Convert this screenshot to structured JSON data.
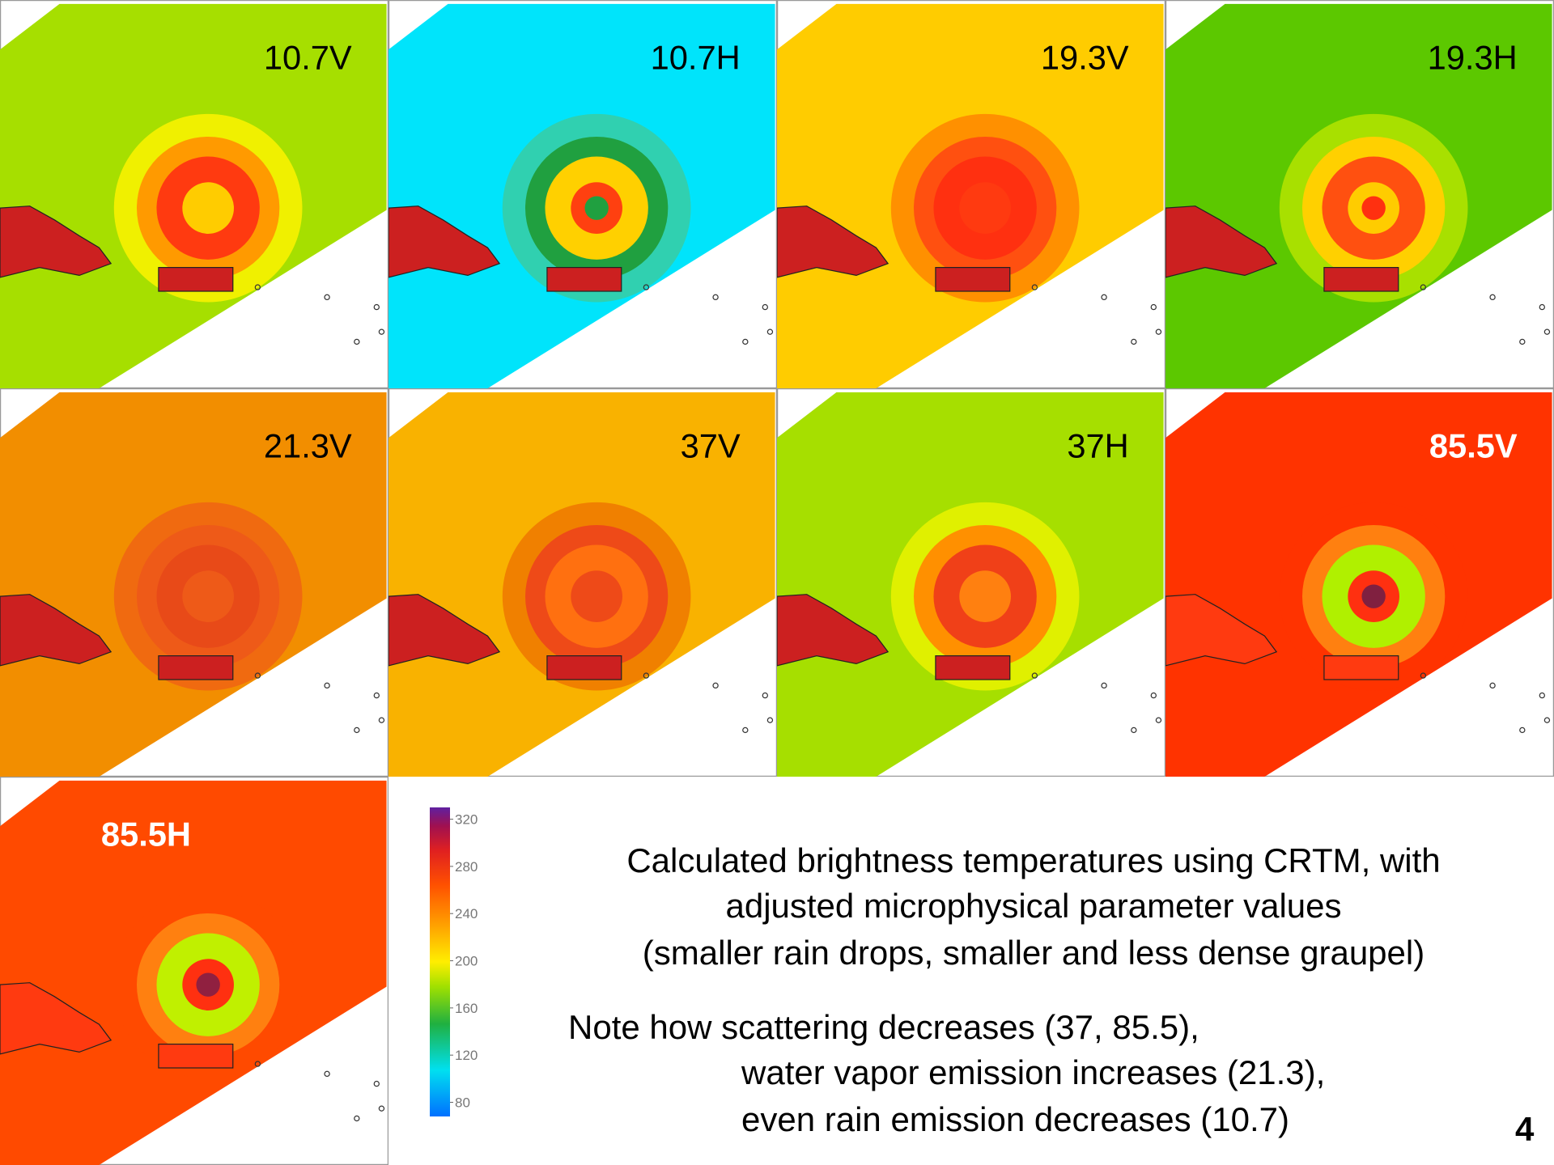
{
  "panels": [
    {
      "label": "10.7V",
      "color": "#a6df00",
      "label_color": "#000000"
    },
    {
      "label": "10.7H",
      "color": "#00e4fb",
      "label_color": "#000000"
    },
    {
      "label": "19.3V",
      "color": "#ffcc00",
      "label_color": "#000000"
    },
    {
      "label": "19.3H",
      "color": "#5cc800",
      "label_color": "#000000"
    },
    {
      "label": "21.3V",
      "color": "#f28e00",
      "label_color": "#000000"
    },
    {
      "label": "37V",
      "color": "#f9b200",
      "label_color": "#000000"
    },
    {
      "label": "37H",
      "color": "#a6df00",
      "label_color": "#000000"
    },
    {
      "label": "85.5V",
      "color": "#ff3300",
      "label_color": "#ffffff"
    },
    {
      "label": "85.5H",
      "color": "#ff4a00",
      "label_color": "#ffffff"
    }
  ],
  "colorbar": {
    "lim": [
      68,
      330
    ],
    "ticks": [
      80,
      120,
      160,
      200,
      240,
      280,
      320
    ]
  },
  "caption": [
    "Calculated brightness temperatures using CRTM, with",
    "adjusted microphysical parameter values",
    "(smaller rain drops, smaller and less dense graupel)"
  ],
  "note": [
    "Note how scattering decreases (37, 85.5),",
    "water vapor emission increases (21.3),",
    "even rain emission decreases (10.7)"
  ],
  "page_number": "4"
}
